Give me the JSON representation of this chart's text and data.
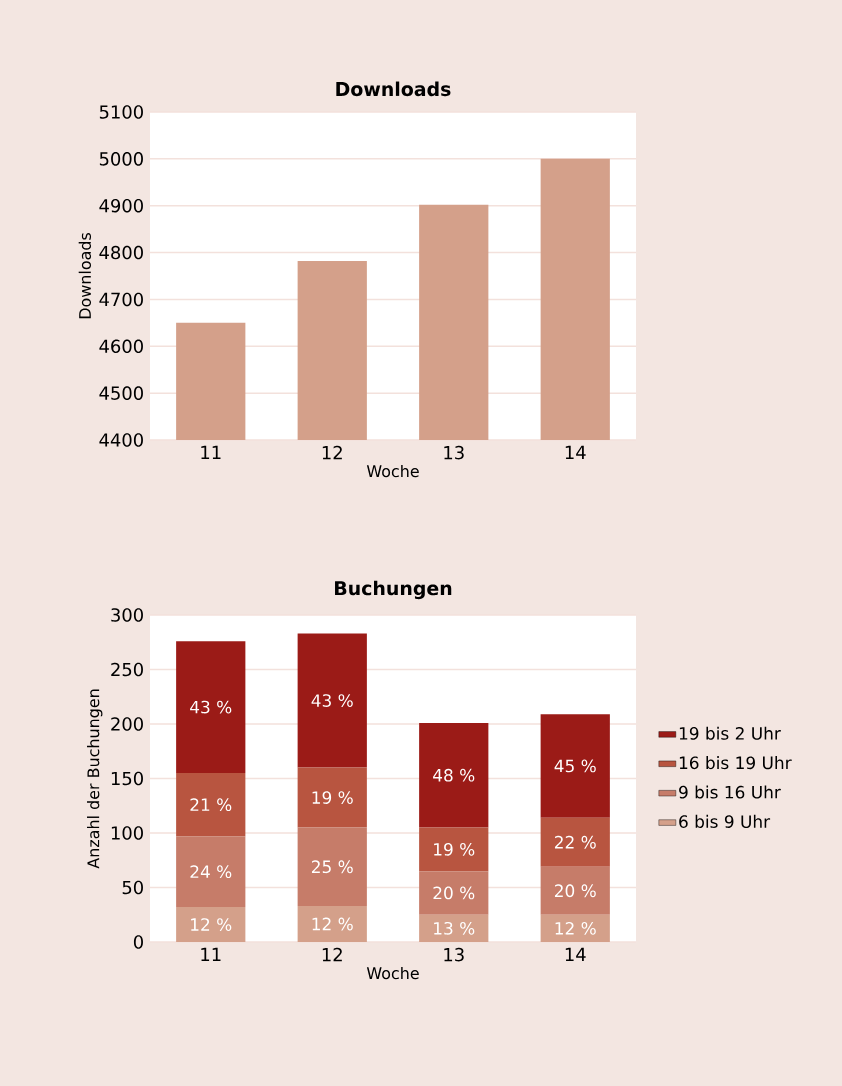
{
  "chart_data": [
    {
      "type": "bar",
      "title": "Downloads",
      "xlabel": "Woche",
      "ylabel": "Downloads",
      "categories": [
        "11",
        "12",
        "13",
        "14"
      ],
      "values": [
        4650,
        4782,
        4902,
        5000
      ],
      "color": "#d4a08a",
      "ylim": [
        4400,
        5100
      ],
      "yticks": [
        4400,
        4500,
        4600,
        4700,
        4800,
        4900,
        5000,
        5100
      ],
      "grid": "y",
      "legend": false
    },
    {
      "type": "bar",
      "title": "Buchungen",
      "xlabel": "Woche",
      "ylabel": "Anzahl der Buchungen",
      "categories": [
        "11",
        "12",
        "13",
        "14"
      ],
      "stacked": true,
      "ylim": [
        0,
        300
      ],
      "yticks": [
        0,
        50,
        100,
        150,
        200,
        250,
        300
      ],
      "grid": "y",
      "legend": "right",
      "series": [
        {
          "name": "6 bis 9 Uhr",
          "color": "#d4a08a",
          "values": [
            32,
            33,
            25,
            25
          ]
        },
        {
          "name": "9 bis 16 Uhr",
          "color": "#c67c69",
          "values": [
            65,
            72,
            40,
            44
          ]
        },
        {
          "name": "16 bis 19 Uhr",
          "color": "#b85540",
          "values": [
            58,
            55,
            40,
            45
          ]
        },
        {
          "name": "19 bis 2 Uhr",
          "color": "#9b1b17",
          "values": [
            121,
            123,
            96,
            95
          ]
        }
      ],
      "annotations": [
        "12 %",
        "12 %",
        "13 %",
        "12 %",
        "24 %",
        "25 %",
        "20 %",
        "20 %",
        "21 %",
        "19 %",
        "19 %",
        "22 %",
        "43 %",
        "43 %",
        "48 %",
        "45 %"
      ]
    }
  ]
}
